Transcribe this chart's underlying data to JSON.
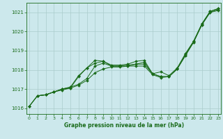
{
  "background_color": "#cce8ec",
  "grid_color": "#aacccc",
  "line_color": "#1a6b1a",
  "title": "Graphe pression niveau de la mer (hPa)",
  "ylim": [
    1015.7,
    1021.5
  ],
  "xlim": [
    -0.3,
    23.3
  ],
  "yticks": [
    1016,
    1017,
    1018,
    1019,
    1020,
    1021
  ],
  "xticks": [
    0,
    1,
    2,
    3,
    4,
    5,
    6,
    7,
    8,
    9,
    10,
    11,
    12,
    13,
    14,
    15,
    16,
    17,
    18,
    19,
    20,
    21,
    22,
    23
  ],
  "series": [
    {
      "x": [
        0,
        1,
        2,
        3,
        4,
        5,
        6,
        7,
        8,
        9,
        10,
        11,
        12,
        13,
        14,
        15,
        16,
        17,
        18,
        19,
        20,
        21,
        22,
        23
      ],
      "y": [
        1016.1,
        1016.65,
        1016.7,
        1016.85,
        1016.95,
        1017.05,
        1017.2,
        1017.45,
        1017.85,
        1018.05,
        1018.15,
        1018.15,
        1018.2,
        1018.2,
        1018.2,
        1017.75,
        1017.6,
        1017.65,
        1018.05,
        1018.75,
        1019.45,
        1020.35,
        1021.0,
        1021.1
      ]
    },
    {
      "x": [
        1,
        2,
        3,
        4,
        5,
        6,
        7,
        8,
        9,
        10,
        11,
        12,
        13,
        14,
        15,
        16,
        17,
        18,
        19,
        20,
        21,
        22,
        23
      ],
      "y": [
        1016.65,
        1016.7,
        1016.85,
        1017.0,
        1017.05,
        1017.65,
        1018.1,
        1018.35,
        1018.45,
        1018.2,
        1018.2,
        1018.25,
        1018.3,
        1018.4,
        1017.8,
        1017.65,
        1017.65,
        1018.05,
        1018.75,
        1019.45,
        1020.35,
        1021.0,
        1021.15
      ]
    },
    {
      "x": [
        0,
        1,
        2,
        3,
        4,
        5,
        6,
        7,
        8,
        9,
        10,
        11,
        12,
        13,
        14,
        15,
        16,
        17,
        18,
        19,
        20,
        21,
        22,
        23
      ],
      "y": [
        1016.1,
        1016.65,
        1016.7,
        1016.85,
        1017.0,
        1017.1,
        1017.25,
        1017.55,
        1018.2,
        1018.35,
        1018.2,
        1018.2,
        1018.2,
        1018.3,
        1018.3,
        1017.8,
        1017.9,
        1017.7,
        1018.1,
        1018.85,
        1019.5,
        1020.4,
        1021.05,
        1021.2
      ]
    },
    {
      "x": [
        0,
        1,
        2,
        3,
        4,
        5,
        6,
        7,
        8,
        9,
        10,
        11,
        12,
        13,
        14,
        15,
        16,
        17,
        18,
        19,
        20,
        21,
        22,
        23
      ],
      "y": [
        1016.1,
        1016.65,
        1016.7,
        1016.85,
        1017.0,
        1017.1,
        1017.7,
        1018.1,
        1018.5,
        1018.45,
        1018.25,
        1018.25,
        1018.3,
        1018.45,
        1018.5,
        1017.8,
        1017.65,
        1017.65,
        1018.05,
        1018.8,
        1019.5,
        1020.4,
        1021.05,
        1021.2
      ]
    }
  ]
}
